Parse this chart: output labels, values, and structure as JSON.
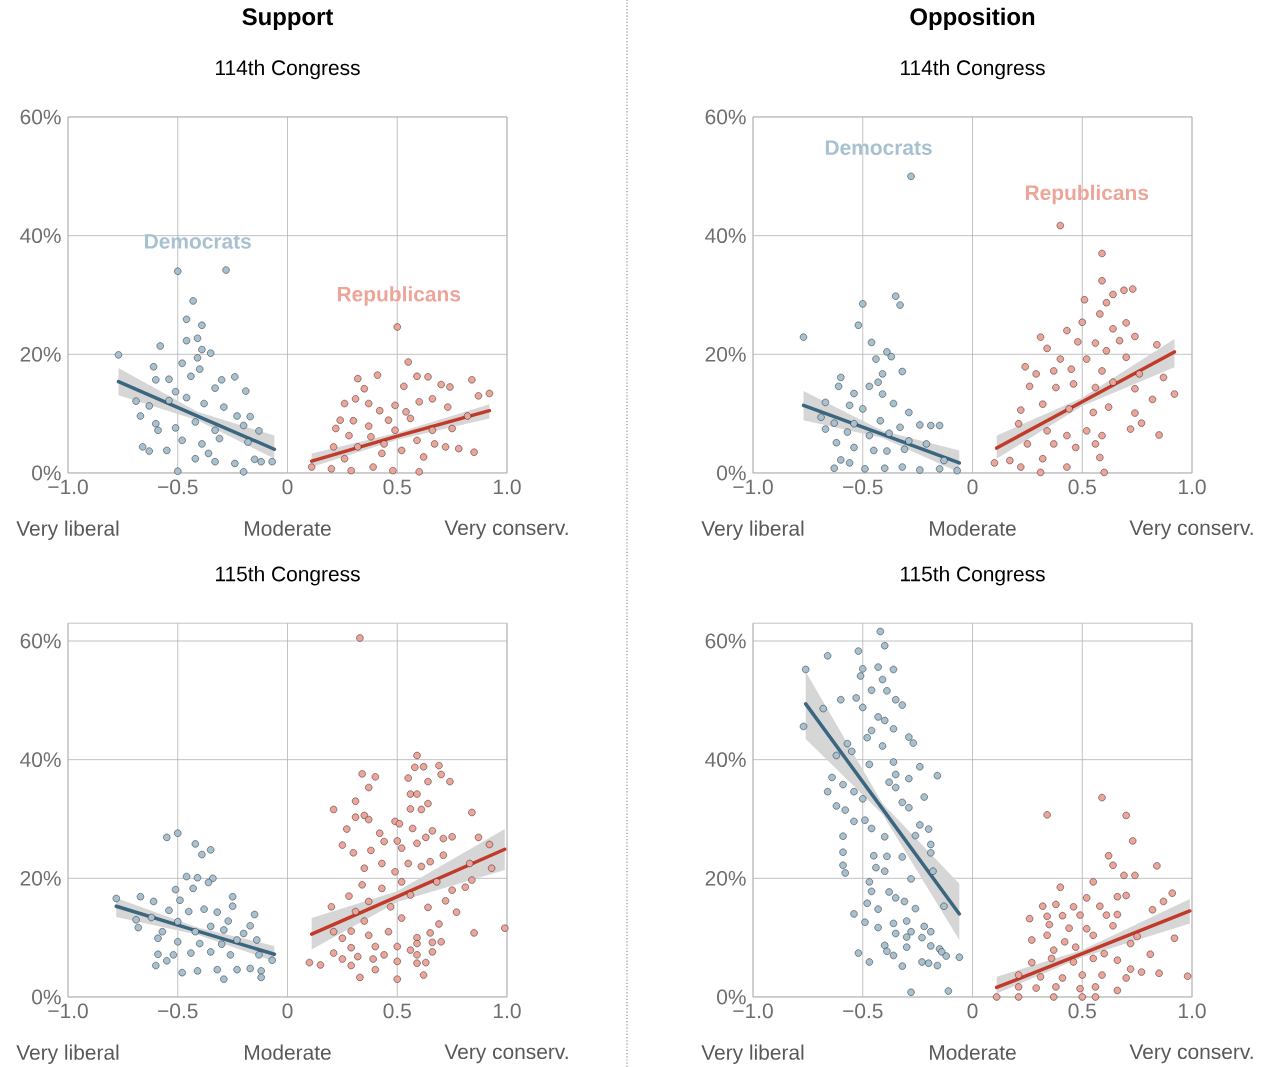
{
  "chart_data": [
    {
      "type": "scatter",
      "title": "Support",
      "subtitle": "114th Congress",
      "xlim": [
        -1,
        1
      ],
      "ylim": [
        0,
        60
      ],
      "xticks": [
        {
          "value": -1,
          "label": "−1.0"
        },
        {
          "value": -0.5,
          "label": "−0.5"
        },
        0,
        0.5,
        {
          "value": 1,
          "label": "1.0"
        }
      ],
      "yticks": [
        {
          "value": 0,
          "label": "0%"
        },
        {
          "value": 20,
          "label": "20%"
        },
        {
          "value": 40,
          "label": "40%"
        },
        {
          "value": 60,
          "label": "60%"
        }
      ],
      "grid": true,
      "annotations": [
        "Very liberal",
        "Moderate",
        "Very conserv."
      ],
      "series": [
        {
          "name": "Democrats",
          "marker": "circle",
          "color": "#a7c1d1",
          "x": [
            -0.77,
            -0.5,
            -0.28,
            -0.43,
            -0.46,
            -0.39,
            -0.46,
            -0.41,
            -0.58,
            -0.39,
            -0.35,
            -0.41,
            -0.48,
            -0.61,
            -0.4,
            -0.24,
            -0.3,
            -0.6,
            -0.54,
            -0.44,
            -0.33,
            -0.19,
            -0.51,
            -0.69,
            -0.63,
            -0.54,
            -0.46,
            -0.38,
            -0.29,
            -0.23,
            -0.17,
            -0.67,
            -0.6,
            -0.51,
            -0.42,
            -0.33,
            -0.2,
            -0.13,
            -0.59,
            -0.48,
            -0.39,
            -0.31,
            -0.18,
            -0.66,
            -0.63,
            -0.55,
            -0.42,
            -0.33,
            -0.24,
            -0.15,
            -0.07,
            -0.5,
            -0.2,
            -0.12,
            -0.36
          ],
          "values": [
            19.9,
            34,
            34.2,
            29,
            25.9,
            24.9,
            22.3,
            22.7,
            21.4,
            20.8,
            20.2,
            19.4,
            18.5,
            17.9,
            17.5,
            16.2,
            15.7,
            15.7,
            15.8,
            16.3,
            14.3,
            13.8,
            13.7,
            12.1,
            11.3,
            12.2,
            12.7,
            11.7,
            11.1,
            9.6,
            9.5,
            9.6,
            8.3,
            7.6,
            8.6,
            7.2,
            8,
            7.1,
            7.2,
            5.5,
            4.9,
            5.8,
            5.2,
            4.4,
            3.7,
            3.8,
            2.4,
            1.9,
            1.6,
            2.3,
            1.9,
            0.3,
            0.2,
            1.9,
            3.3
          ]
        },
        {
          "name": "Republicans",
          "marker": "circle",
          "color": "#eda499",
          "x": [
            0.5,
            0.55,
            0.32,
            0.41,
            0.59,
            0.64,
            0.84,
            0.92,
            0.87,
            0.53,
            0.7,
            0.74,
            0.35,
            0.31,
            0.37,
            0.26,
            0.49,
            0.6,
            0.66,
            0.73,
            0.82,
            0.42,
            0.54,
            0.24,
            0.3,
            0.37,
            0.46,
            0.56,
            0.66,
            0.75,
            0.22,
            0.28,
            0.38,
            0.49,
            0.59,
            0.72,
            0.78,
            0.85,
            0.21,
            0.32,
            0.43,
            0.52,
            0.62,
            0.11,
            0.2,
            0.29,
            0.39,
            0.48,
            0.6,
            0.26,
            0.44,
            0.67
          ],
          "values": [
            24.6,
            18.7,
            15.9,
            16.5,
            16.3,
            16.2,
            15.7,
            13.4,
            13,
            14.6,
            14.9,
            14.5,
            14.2,
            12.5,
            11.7,
            11.7,
            11.4,
            12,
            12.5,
            11.1,
            9.6,
            10.5,
            10.3,
            8.9,
            8.8,
            7.9,
            8.9,
            9.2,
            7.2,
            7.5,
            7.5,
            6.3,
            6.1,
            7.2,
            5.5,
            4.4,
            4.1,
            3.5,
            4.4,
            4.4,
            3.3,
            3.8,
            2.7,
            1,
            0.7,
            0.4,
            1,
            0.4,
            0.2,
            2.4,
            4.9,
            4.9
          ]
        },
        {
          "type": "line",
          "color": "#3b6680",
          "x": [
            -0.77,
            -0.41,
            -0.06
          ],
          "values": [
            15.4,
            9.6,
            4.0
          ],
          "lower": [
            13.1,
            8.9,
            2.4
          ],
          "upper": [
            17.7,
            10.3,
            6.3
          ]
        },
        {
          "type": "line",
          "color": "#c23b2a",
          "x": [
            0.11,
            0.5,
            0.92
          ],
          "values": [
            2.0,
            6.2,
            10.5
          ],
          "lower": [
            1.0,
            5.6,
            9.2
          ],
          "upper": [
            3.3,
            6.8,
            11.6
          ]
        }
      ]
    },
    {
      "type": "scatter",
      "title": "Opposition",
      "subtitle": "114th Congress",
      "xlim": [
        -1,
        1
      ],
      "ylim": [
        0,
        60
      ],
      "xticks": [
        {
          "value": -1,
          "label": "−1.0"
        },
        {
          "value": -0.5,
          "label": "−0.5"
        },
        0,
        0.5,
        {
          "value": 1,
          "label": "1.0"
        }
      ],
      "yticks": [
        {
          "value": 0,
          "label": "0%"
        },
        {
          "value": 20,
          "label": "20%"
        },
        {
          "value": 40,
          "label": "40%"
        },
        {
          "value": 60,
          "label": "60%"
        }
      ],
      "grid": true,
      "annotations": [
        "Very liberal",
        "Moderate",
        "Very conserv."
      ],
      "series": [
        {
          "name": "Democrats",
          "marker": "circle",
          "color": "#a7c1d1",
          "x": [
            -0.28,
            -0.77,
            -0.35,
            -0.33,
            -0.5,
            -0.52,
            -0.46,
            -0.44,
            -0.39,
            -0.37,
            -0.32,
            -0.41,
            -0.43,
            -0.6,
            -0.61,
            -0.47,
            -0.54,
            -0.41,
            -0.67,
            -0.56,
            -0.5,
            -0.36,
            -0.29,
            -0.69,
            -0.63,
            -0.67,
            -0.54,
            -0.42,
            -0.33,
            -0.24,
            -0.19,
            -0.15,
            -0.57,
            -0.47,
            -0.38,
            -0.29,
            -0.21,
            -0.62,
            -0.54,
            -0.45,
            -0.39,
            -0.31,
            -0.6,
            -0.56,
            -0.63,
            -0.49,
            -0.4,
            -0.32,
            -0.24,
            -0.15,
            -0.07,
            -0.13
          ],
          "values": [
            50,
            22.9,
            29.8,
            28.3,
            28.5,
            24.9,
            22,
            19.2,
            20.4,
            19.6,
            17.1,
            16.7,
            15.3,
            16.1,
            14.6,
            14.6,
            13.4,
            13.3,
            11.9,
            11.4,
            10.8,
            11.7,
            10.2,
            9.4,
            8.4,
            7.4,
            8.3,
            8.8,
            7.7,
            8.1,
            8,
            8,
            6.9,
            6.3,
            6.7,
            5.4,
            4.9,
            5.1,
            4.3,
            3.8,
            3.7,
            4,
            2.2,
            1.7,
            0.8,
            0.7,
            0.8,
            1,
            0.5,
            0.7,
            0.4,
            2.1
          ]
        },
        {
          "name": "Republicans",
          "marker": "circle",
          "color": "#eda499",
          "x": [
            0.4,
            0.59,
            0.59,
            0.64,
            0.69,
            0.73,
            0.51,
            0.61,
            0.58,
            0.5,
            0.7,
            0.43,
            0.64,
            0.31,
            0.48,
            0.56,
            0.67,
            0.74,
            0.84,
            0.34,
            0.4,
            0.52,
            0.61,
            0.7,
            0.24,
            0.29,
            0.37,
            0.45,
            0.59,
            0.76,
            0.87,
            0.26,
            0.38,
            0.46,
            0.56,
            0.64,
            0.74,
            0.92,
            0.82,
            0.22,
            0.32,
            0.44,
            0.55,
            0.62,
            0.74,
            0.77,
            0.85,
            0.21,
            0.34,
            0.43,
            0.52,
            0.59,
            0.72,
            0.25,
            0.37,
            0.47,
            0.56,
            0.1,
            0.17,
            0.22,
            0.32,
            0.43,
            0.58,
            0.6,
            0.31
          ],
          "values": [
            41.7,
            37,
            32.4,
            30.1,
            30.8,
            31,
            29.2,
            28.7,
            26.8,
            25.4,
            25.3,
            24,
            24.3,
            22.9,
            22.1,
            21.9,
            22.3,
            23,
            21.6,
            21,
            19.2,
            19.2,
            20.6,
            19.5,
            17.9,
            16.7,
            17.2,
            17.5,
            17.2,
            16.7,
            16.1,
            14.6,
            14.4,
            15,
            14.4,
            15.3,
            14.2,
            13.3,
            12.4,
            10.6,
            11.6,
            10.8,
            10.2,
            11.1,
            10.1,
            8.4,
            6.4,
            8.3,
            7.1,
            6.3,
            7.1,
            6.3,
            7.4,
            4.9,
            4.9,
            4.3,
            4.9,
            1.7,
            2.1,
            1,
            2.4,
            1,
            2.6,
            0.1,
            0.1
          ]
        },
        {
          "type": "line",
          "color": "#3b6680",
          "x": [
            -0.77,
            -0.41,
            -0.06
          ],
          "values": [
            11.4,
            6.5,
            1.7
          ],
          "lower": [
            8.9,
            5.9,
            0.1
          ],
          "upper": [
            13.8,
            7.1,
            3.8
          ]
        },
        {
          "type": "line",
          "color": "#c23b2a",
          "x": [
            0.11,
            0.5,
            0.92
          ],
          "values": [
            4.2,
            12.0,
            20.4
          ],
          "lower": [
            2.4,
            11.3,
            17.8
          ],
          "upper": [
            6.3,
            12.7,
            22.6
          ]
        }
      ]
    },
    {
      "type": "scatter",
      "subtitle": "115th Congress",
      "xlim": [
        -1,
        1
      ],
      "ylim": [
        0,
        63
      ],
      "xticks": [
        {
          "value": -1,
          "label": "−1.0"
        },
        {
          "value": -0.5,
          "label": "−0.5"
        },
        0,
        0.5,
        {
          "value": 1,
          "label": "1.0"
        }
      ],
      "yticks": [
        {
          "value": 0,
          "label": "0%"
        },
        {
          "value": 20,
          "label": "20%"
        },
        {
          "value": 40,
          "label": "40%"
        },
        {
          "value": 60,
          "label": "60%"
        }
      ],
      "grid": true,
      "annotations": [
        "Very liberal",
        "Moderate",
        "Very conserv."
      ],
      "series": [
        {
          "marker": "circle",
          "color": "#a7c1d1",
          "x": [
            -0.78,
            -0.55,
            -0.5,
            -0.42,
            -0.39,
            -0.35,
            -0.46,
            -0.41,
            -0.34,
            -0.51,
            -0.43,
            -0.36,
            -0.25,
            -0.25,
            -0.15,
            -0.67,
            -0.61,
            -0.54,
            -0.49,
            -0.45,
            -0.38,
            -0.32,
            -0.27,
            -0.69,
            -0.62,
            -0.68,
            -0.57,
            -0.5,
            -0.42,
            -0.35,
            -0.29,
            -0.2,
            -0.17,
            -0.59,
            -0.5,
            -0.4,
            -0.3,
            -0.23,
            -0.14,
            -0.59,
            -0.52,
            -0.44,
            -0.35,
            -0.26,
            -0.13,
            -0.6,
            -0.55,
            -0.48,
            -0.41,
            -0.32,
            -0.23,
            -0.17,
            -0.12,
            -0.12,
            -0.29,
            -0.07
          ],
          "values": [
            16.6,
            26.9,
            27.6,
            25.8,
            24,
            24.8,
            20.3,
            20.1,
            20,
            18.1,
            18.3,
            19.3,
            16.9,
            15.3,
            13.9,
            16.9,
            16.1,
            14.6,
            16.3,
            14.4,
            14.8,
            14.3,
            12.8,
            13,
            13.4,
            11.7,
            11,
            12.7,
            11,
            11.9,
            11.3,
            10.7,
            12,
            9.9,
            9.3,
            9,
            8.9,
            9.6,
            9.6,
            7.2,
            7.1,
            7.4,
            7.6,
            7.1,
            7.1,
            5.3,
            6.1,
            4.1,
            4.4,
            4.6,
            4.6,
            4.8,
            4.4,
            3.3,
            3,
            6.2
          ]
        },
        {
          "marker": "circle",
          "color": "#eda499",
          "x": [
            0.33,
            0.59,
            0.58,
            0.62,
            0.69,
            0.7,
            0.74,
            0.34,
            0.4,
            0.55,
            0.64,
            0.37,
            0.56,
            0.59,
            0.64,
            0.31,
            0.56,
            0.61,
            0.21,
            0.31,
            0.35,
            0.37,
            0.84,
            0.49,
            0.51,
            0.27,
            0.57,
            0.66,
            0.42,
            0.63,
            0.71,
            0.75,
            0.87,
            0.25,
            0.44,
            0.5,
            0.59,
            0.3,
            0.38,
            0.43,
            0.52,
            0.55,
            0.65,
            0.71,
            0.92,
            0.93,
            0.35,
            0.49,
            0.61,
            0.83,
            0.34,
            0.43,
            0.52,
            0.68,
            0.84,
            0.75,
            0.81,
            0.28,
            0.37,
            0.56,
            0.72,
            0.2,
            0.31,
            0.47,
            0.64,
            0.77,
            0.35,
            0.52,
            0.69,
            0.85,
            0.99,
            0.21,
            0.29,
            0.37,
            0.46,
            0.59,
            0.65,
            0.25,
            0.66,
            0.7,
            0.29,
            0.4,
            0.5,
            0.59,
            0.66,
            0.21,
            0.32,
            0.44,
            0.56,
            0.59,
            0.1,
            0.15,
            0.25,
            0.39,
            0.5,
            0.59,
            0.63,
            0.29,
            0.4,
            0.62,
            0.33,
            0.5
          ],
          "values": [
            60.5,
            40.7,
            38.7,
            38.8,
            39,
            37.5,
            36.3,
            37.6,
            37.1,
            36.9,
            36.3,
            35.3,
            34.2,
            34.2,
            32.6,
            33,
            31.7,
            31.6,
            31.6,
            30.3,
            30.6,
            29.9,
            31.1,
            29.6,
            29.2,
            28.3,
            28.4,
            28,
            27.6,
            26.9,
            26.7,
            27,
            26.9,
            25.6,
            26.2,
            26.3,
            25.9,
            24.3,
            24.7,
            22.5,
            25.1,
            22.5,
            22.8,
            23.9,
            25.7,
            21.7,
            21.7,
            21.1,
            22,
            22.5,
            18.9,
            18.3,
            19.4,
            19.4,
            19.7,
            18,
            18.5,
            17,
            16.1,
            17.2,
            16.2,
            15.2,
            14.4,
            15.2,
            15.1,
            14.3,
            12.8,
            13.3,
            12.3,
            10.8,
            11.6,
            11,
            11.1,
            10.4,
            11,
            10,
            10.8,
            9.9,
            9.2,
            9.3,
            8.3,
            8.5,
            8.5,
            9,
            7.6,
            7.4,
            6.8,
            7.1,
            7.9,
            7.1,
            5.8,
            5.4,
            6.4,
            6.4,
            6,
            5.7,
            5.8,
            5.3,
            4.6,
            3.7,
            3.3,
            3
          ]
        },
        {
          "type": "line",
          "color": "#3b6680",
          "x": [
            -0.78,
            -0.41,
            -0.06
          ],
          "values": [
            15.3,
            11.1,
            7.2
          ],
          "lower": [
            13.5,
            10.5,
            6.0
          ],
          "upper": [
            16.7,
            11.7,
            8.6
          ]
        },
        {
          "type": "line",
          "color": "#c23b2a",
          "x": [
            0.11,
            0.5,
            0.99
          ],
          "values": [
            10.6,
            16.9,
            24.9
          ],
          "lower": [
            8.0,
            16.0,
            21.4
          ],
          "upper": [
            13.3,
            17.8,
            28.3
          ]
        }
      ]
    },
    {
      "type": "scatter",
      "subtitle": "115th Congress",
      "xlim": [
        -1,
        1
      ],
      "ylim": [
        0,
        63
      ],
      "xticks": [
        {
          "value": -1,
          "label": "−1.0"
        },
        {
          "value": -0.5,
          "label": "−0.5"
        },
        0,
        0.5,
        {
          "value": 1,
          "label": "1.0"
        }
      ],
      "yticks": [
        {
          "value": 0,
          "label": "0%"
        },
        {
          "value": 20,
          "label": "20%"
        },
        {
          "value": 40,
          "label": "40%"
        },
        {
          "value": 60,
          "label": "60%"
        }
      ],
      "grid": true,
      "annotations": [
        "Very liberal",
        "Moderate",
        "Very conserv."
      ],
      "series": [
        {
          "marker": "circle",
          "color": "#a7c1d1",
          "x": [
            -0.42,
            -0.4,
            -0.66,
            -0.52,
            -0.76,
            -0.5,
            -0.43,
            -0.36,
            -0.51,
            -0.41,
            -0.46,
            -0.39,
            -0.6,
            -0.53,
            -0.5,
            -0.35,
            -0.32,
            -0.43,
            -0.77,
            -0.68,
            -0.4,
            -0.36,
            -0.46,
            -0.48,
            -0.41,
            -0.29,
            -0.27,
            -0.57,
            -0.55,
            -0.62,
            -0.36,
            -0.24,
            -0.47,
            -0.35,
            -0.29,
            -0.16,
            -0.64,
            -0.59,
            -0.66,
            -0.54,
            -0.5,
            -0.38,
            -0.35,
            -0.22,
            -0.62,
            -0.58,
            -0.54,
            -0.49,
            -0.46,
            -0.32,
            -0.29,
            -0.24,
            -0.2,
            -0.59,
            -0.4,
            -0.26,
            -0.19,
            -0.59,
            -0.45,
            -0.39,
            -0.32,
            -0.19,
            -0.59,
            -0.58,
            -0.44,
            -0.4,
            -0.28,
            -0.18,
            -0.47,
            -0.46,
            -0.38,
            -0.35,
            -0.31,
            -0.48,
            -0.43,
            -0.54,
            -0.49,
            -0.26,
            -0.13,
            -0.3,
            -0.36,
            -0.43,
            -0.35,
            -0.22,
            -0.19,
            -0.3,
            -0.28,
            -0.23,
            -0.19,
            -0.4,
            -0.3,
            -0.15,
            -0.52,
            -0.39,
            -0.36,
            -0.14,
            -0.12,
            -0.06,
            -0.47,
            -0.32,
            -0.23,
            -0.2,
            -0.16,
            -0.28,
            -0.11
          ],
          "values": [
            61.6,
            59.2,
            57.5,
            58.3,
            55.2,
            55.3,
            55.6,
            55.2,
            54.1,
            53.5,
            51.7,
            51.6,
            50.1,
            50.4,
            48.8,
            50.1,
            49.2,
            47.2,
            45.6,
            48.6,
            46.6,
            45.2,
            44.9,
            43.7,
            42.3,
            43.8,
            42.8,
            42.7,
            41.4,
            40.7,
            39.6,
            38.8,
            39.2,
            37.5,
            36.8,
            37.3,
            37,
            35.8,
            34.6,
            34.6,
            33.4,
            36.2,
            35.3,
            33.7,
            32.2,
            31.5,
            29.6,
            29.8,
            28.4,
            32.8,
            31.9,
            29,
            28.3,
            27.1,
            27,
            27.2,
            25.7,
            24.4,
            23.8,
            23.7,
            23.6,
            24.3,
            22.2,
            20.9,
            21.8,
            21.2,
            19.9,
            21.2,
            19.4,
            17.8,
            17.7,
            16.7,
            16.1,
            15.8,
            14.8,
            14,
            12.6,
            14.9,
            15.3,
            12.8,
            12.4,
            11.7,
            10.7,
            11.9,
            11,
            10.1,
            11,
            10,
            8.6,
            8.7,
            8.4,
            8.1,
            7.4,
            7.7,
            7,
            7.6,
            6.9,
            6.7,
            5.9,
            5.2,
            5.9,
            5.7,
            5.3,
            0.8,
            1
          ]
        },
        {
          "marker": "circle",
          "color": "#eda499",
          "x": [
            0.59,
            0.34,
            0.7,
            0.73,
            0.62,
            0.64,
            0.84,
            0.69,
            0.74,
            0.55,
            0.4,
            0.91,
            0.52,
            0.7,
            0.66,
            0.87,
            0.32,
            0.38,
            0.46,
            0.58,
            0.82,
            0.26,
            0.34,
            0.41,
            0.49,
            0.61,
            0.66,
            0.35,
            0.44,
            0.52,
            0.64,
            0.75,
            0.92,
            0.27,
            0.34,
            0.42,
            0.55,
            0.72,
            0.81,
            0.37,
            0.47,
            0.6,
            0.27,
            0.36,
            0.46,
            0.55,
            0.66,
            0.72,
            0.77,
            0.85,
            0.98,
            0.21,
            0.31,
            0.41,
            0.5,
            0.59,
            0.7,
            0.21,
            0.29,
            0.38,
            0.49,
            0.56,
            0.66,
            0.11,
            0.21,
            0.37,
            0.5,
            0.56
          ],
          "values": [
            33.6,
            30.7,
            30.6,
            26.3,
            23.8,
            22.2,
            22.1,
            20.5,
            20.5,
            19.4,
            18.5,
            17.5,
            16.7,
            17.1,
            16.9,
            16.1,
            15.3,
            15.6,
            15.2,
            15.3,
            14.7,
            13.2,
            13.6,
            13.7,
            13.8,
            13.8,
            13.9,
            12.2,
            11.6,
            11.5,
            12,
            10.2,
            9.9,
            9.6,
            10.4,
            9.3,
            10.4,
            9,
            7.2,
            7.9,
            8.4,
            7.3,
            5.8,
            6.5,
            5.9,
            6.5,
            6.2,
            4.7,
            4.2,
            4,
            3.5,
            3.7,
            3.4,
            3.2,
            3.7,
            3.7,
            3.2,
            1.7,
            1.5,
            1.7,
            1.4,
            1.7,
            1.1,
            0,
            0,
            0,
            0,
            0
          ]
        },
        {
          "type": "line",
          "color": "#3b6680",
          "x": [
            -0.76,
            -0.41,
            -0.06
          ],
          "values": [
            49.4,
            31.7,
            14.0
          ],
          "lower": [
            43.5,
            30.8,
            9.6
          ],
          "upper": [
            54.8,
            32.6,
            19.1
          ]
        },
        {
          "type": "line",
          "color": "#c23b2a",
          "x": [
            0.11,
            0.5,
            0.99
          ],
          "values": [
            1.6,
            7.3,
            14.5
          ],
          "lower": [
            0.6,
            6.7,
            12.4
          ],
          "upper": [
            3.4,
            7.9,
            16.5
          ]
        }
      ]
    }
  ]
}
